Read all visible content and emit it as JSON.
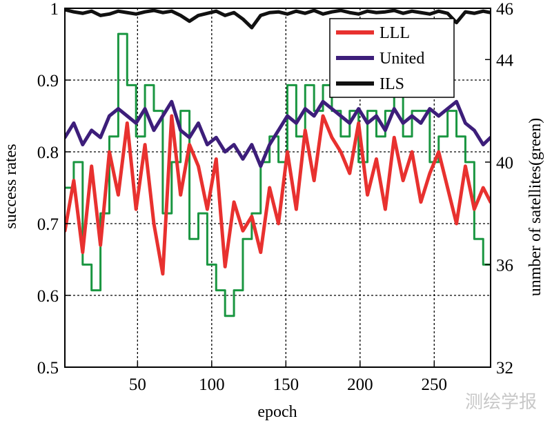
{
  "chart_data": {
    "type": "line",
    "xlabel": "epoch",
    "ylabel": "success rates",
    "y2label": "unmber of satellites(green)",
    "xlim": [
      1,
      288
    ],
    "ylim": [
      0.5,
      1.0
    ],
    "y2lim": [
      32,
      46
    ],
    "x_ticks": [
      50,
      100,
      150,
      200,
      250
    ],
    "y_ticks": [
      0.5,
      0.6,
      0.7,
      0.8,
      0.9,
      1.0
    ],
    "y_tick_labels": [
      "0.5",
      "0.6",
      "0.7",
      "0.8",
      "0.9",
      "1"
    ],
    "y2_ticks": [
      32,
      36,
      40,
      44,
      46
    ],
    "grid": true,
    "legend_position": "top-right",
    "x": [
      1,
      7,
      13,
      19,
      25,
      31,
      37,
      43,
      49,
      55,
      61,
      67,
      73,
      79,
      85,
      91,
      97,
      103,
      109,
      115,
      121,
      127,
      133,
      139,
      145,
      151,
      157,
      163,
      169,
      175,
      181,
      187,
      193,
      199,
      205,
      211,
      217,
      223,
      229,
      235,
      241,
      247,
      253,
      259,
      265,
      271,
      277,
      283,
      288
    ],
    "series": [
      {
        "name": "LLL",
        "color": "#e8312f",
        "axis": "left",
        "values": [
          0.69,
          0.76,
          0.66,
          0.78,
          0.67,
          0.8,
          0.74,
          0.84,
          0.72,
          0.81,
          0.7,
          0.63,
          0.85,
          0.74,
          0.81,
          0.78,
          0.72,
          0.79,
          0.64,
          0.73,
          0.69,
          0.71,
          0.66,
          0.75,
          0.7,
          0.8,
          0.72,
          0.83,
          0.76,
          0.85,
          0.82,
          0.8,
          0.77,
          0.84,
          0.74,
          0.79,
          0.72,
          0.82,
          0.76,
          0.8,
          0.73,
          0.77,
          0.8,
          0.75,
          0.7,
          0.78,
          0.72,
          0.75,
          0.73
        ]
      },
      {
        "name": "United",
        "color": "#3d1e7a",
        "axis": "left",
        "values": [
          0.82,
          0.84,
          0.81,
          0.83,
          0.82,
          0.85,
          0.86,
          0.85,
          0.84,
          0.86,
          0.83,
          0.85,
          0.87,
          0.83,
          0.82,
          0.84,
          0.81,
          0.82,
          0.8,
          0.81,
          0.79,
          0.81,
          0.78,
          0.81,
          0.83,
          0.85,
          0.84,
          0.86,
          0.85,
          0.87,
          0.86,
          0.85,
          0.84,
          0.86,
          0.84,
          0.85,
          0.83,
          0.86,
          0.84,
          0.85,
          0.84,
          0.86,
          0.85,
          0.86,
          0.87,
          0.84,
          0.83,
          0.81,
          0.82
        ]
      },
      {
        "name": "ILS",
        "color": "#111111",
        "axis": "left",
        "values": [
          0.998,
          0.995,
          0.993,
          0.996,
          0.99,
          0.992,
          0.996,
          0.994,
          0.992,
          0.995,
          0.997,
          0.994,
          0.996,
          0.99,
          0.982,
          0.99,
          0.993,
          0.996,
          0.99,
          0.994,
          0.985,
          0.973,
          0.99,
          0.994,
          0.995,
          0.992,
          0.996,
          0.993,
          0.997,
          0.992,
          0.995,
          0.997,
          0.994,
          0.992,
          0.996,
          0.994,
          0.995,
          0.997,
          0.993,
          0.996,
          0.994,
          0.992,
          0.996,
          0.993,
          0.98,
          0.995,
          0.993,
          0.996,
          0.994
        ]
      },
      {
        "color": "#1a9641",
        "axis": "right",
        "values": [
          39,
          40,
          36,
          35,
          38,
          41,
          45,
          43,
          41,
          43,
          42,
          38,
          40,
          42,
          37,
          38,
          36,
          35,
          34,
          35,
          37,
          38,
          40,
          41,
          40,
          43,
          41,
          43,
          42,
          43,
          42,
          41,
          42,
          40,
          42,
          41,
          42,
          43,
          41,
          42,
          42,
          40,
          41,
          42,
          41,
          40,
          37,
          36,
          36
        ]
      }
    ]
  },
  "watermark": "测绘学报"
}
